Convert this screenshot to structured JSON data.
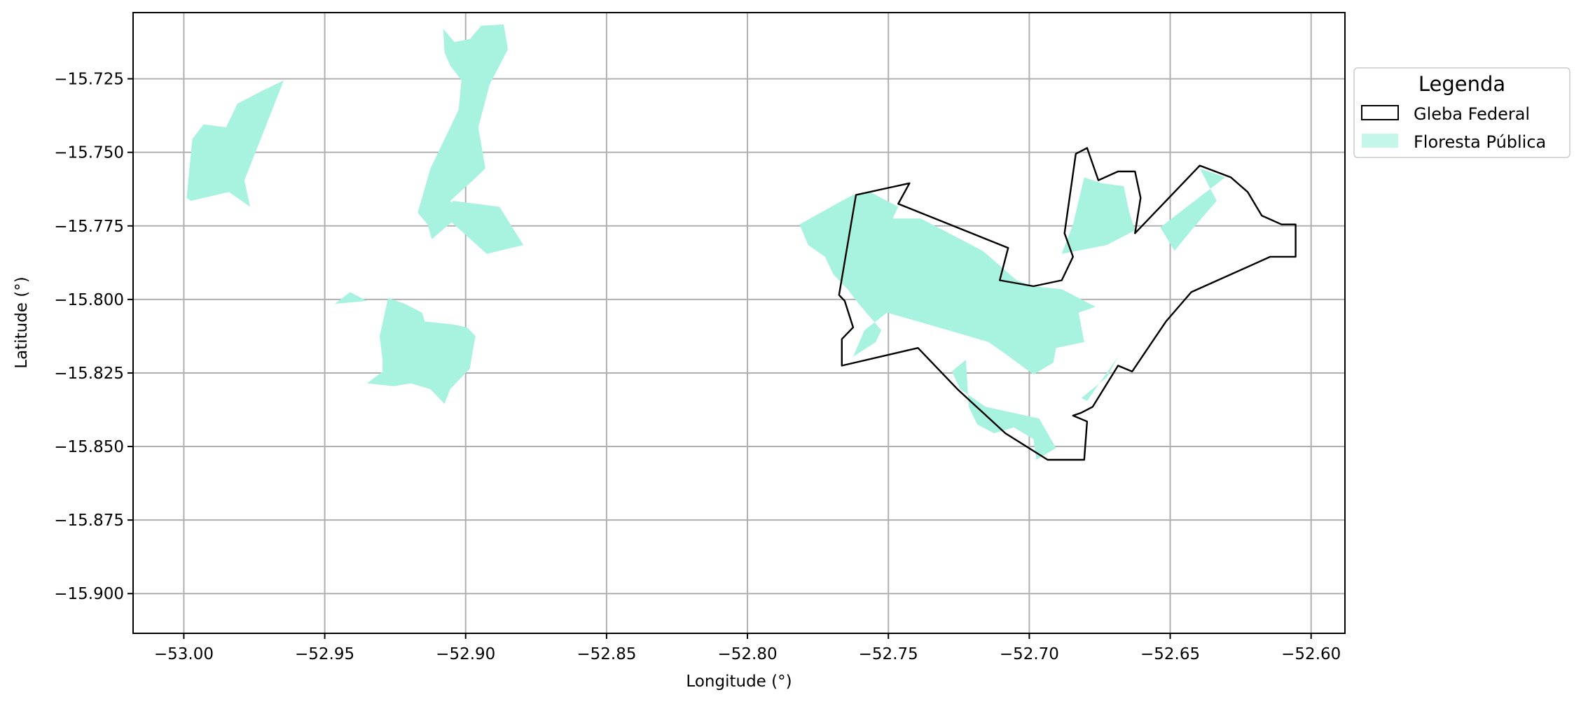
{
  "chart_data": {
    "type": "map",
    "title": "",
    "xlabel": "Longitude (°)",
    "ylabel": "Latitude (°)",
    "xlim": [
      -53.018,
      -52.588
    ],
    "ylim": [
      -15.9135,
      -15.7025
    ],
    "grid": true,
    "x_ticks": [
      {
        "value": -53.0,
        "label": "−53.00"
      },
      {
        "value": -52.95,
        "label": "−52.95"
      },
      {
        "value": -52.9,
        "label": "−52.90"
      },
      {
        "value": -52.85,
        "label": "−52.85"
      },
      {
        "value": -52.8,
        "label": "−52.80"
      },
      {
        "value": -52.75,
        "label": "−52.75"
      },
      {
        "value": -52.7,
        "label": "−52.70"
      },
      {
        "value": -52.65,
        "label": "−52.65"
      },
      {
        "value": -52.6,
        "label": "−52.60"
      }
    ],
    "y_ticks": [
      {
        "value": -15.725,
        "label": "−15.725"
      },
      {
        "value": -15.75,
        "label": "−15.750"
      },
      {
        "value": -15.775,
        "label": "−15.775"
      },
      {
        "value": -15.8,
        "label": "−15.800"
      },
      {
        "value": -15.825,
        "label": "−15.825"
      },
      {
        "value": -15.85,
        "label": "−15.850"
      },
      {
        "value": -15.875,
        "label": "−15.875"
      },
      {
        "value": -15.9,
        "label": "−15.900"
      }
    ],
    "legend": {
      "title": "Legenda",
      "placement": "outside-right-top",
      "entries": [
        {
          "label": "Gleba Federal",
          "style": "outline",
          "color": "#000000"
        },
        {
          "label": "Floresta Pública",
          "style": "fill",
          "color": "#a8f3e0"
        }
      ]
    },
    "forest_color": "#a8f3e0",
    "boundary_color": "#000000",
    "forest_polygons": [
      [
        [
          -52.999,
          -15.7655
        ],
        [
          -52.997,
          -15.7455
        ],
        [
          -52.993,
          -15.7405
        ],
        [
          -52.985,
          -15.7415
        ],
        [
          -52.981,
          -15.7335
        ],
        [
          -52.973,
          -15.7295
        ],
        [
          -52.9645,
          -15.7255
        ],
        [
          -52.9785,
          -15.7595
        ],
        [
          -52.9765,
          -15.7685
        ],
        [
          -52.984,
          -15.7635
        ],
        [
          -52.9975,
          -15.7665
        ]
      ],
      [
        [
          -52.9075,
          -15.716
        ],
        [
          -52.908,
          -15.708
        ],
        [
          -52.904,
          -15.7125
        ],
        [
          -52.8985,
          -15.7115
        ],
        [
          -52.8945,
          -15.707
        ],
        [
          -52.8865,
          -15.7065
        ],
        [
          -52.885,
          -15.715
        ],
        [
          -52.8915,
          -15.727
        ],
        [
          -52.8955,
          -15.7415
        ],
        [
          -52.893,
          -15.7555
        ],
        [
          -52.8985,
          -15.7605
        ],
        [
          -52.9055,
          -15.7665
        ],
        [
          -52.901,
          -15.7705
        ],
        [
          -52.912,
          -15.7795
        ],
        [
          -52.9135,
          -15.7745
        ],
        [
          -52.917,
          -15.7705
        ],
        [
          -52.9125,
          -15.7555
        ],
        [
          -52.908,
          -15.7465
        ],
        [
          -52.9025,
          -15.7355
        ],
        [
          -52.9015,
          -15.7255
        ],
        [
          -52.9055,
          -15.7205
        ]
      ],
      [
        [
          -52.907,
          -15.772
        ],
        [
          -52.8925,
          -15.7845
        ],
        [
          -52.8795,
          -15.7815
        ],
        [
          -52.888,
          -15.7685
        ],
        [
          -52.9045,
          -15.7665
        ]
      ],
      [
        [
          -52.941,
          -15.7975
        ],
        [
          -52.935,
          -15.8005
        ],
        [
          -52.9465,
          -15.8015
        ]
      ],
      [
        [
          -52.9275,
          -15.7995
        ],
        [
          -52.9305,
          -15.8125
        ],
        [
          -52.9295,
          -15.8205
        ],
        [
          -52.9295,
          -15.8245
        ],
        [
          -52.935,
          -15.8285
        ],
        [
          -52.9255,
          -15.8295
        ],
        [
          -52.9195,
          -15.8285
        ],
        [
          -52.9125,
          -15.8305
        ],
        [
          -52.9075,
          -15.8355
        ],
        [
          -52.9055,
          -15.8305
        ],
        [
          -52.8985,
          -15.8235
        ],
        [
          -52.8975,
          -15.8175
        ],
        [
          -52.8965,
          -15.8125
        ],
        [
          -52.8995,
          -15.8095
        ],
        [
          -52.9045,
          -15.8085
        ],
        [
          -52.9145,
          -15.8075
        ],
        [
          -52.9155,
          -15.8045
        ],
        [
          -52.9215,
          -15.8015
        ]
      ],
      [
        [
          -52.7815,
          -15.7745
        ],
        [
          -52.7665,
          -15.7665
        ],
        [
          -52.7625,
          -15.7645
        ],
        [
          -52.7565,
          -15.7635
        ],
        [
          -52.7465,
          -15.7685
        ],
        [
          -52.7485,
          -15.7725
        ],
        [
          -52.7385,
          -15.7725
        ],
        [
          -52.7165,
          -15.7835
        ],
        [
          -52.7045,
          -15.7935
        ],
        [
          -52.6985,
          -15.7955
        ],
        [
          -52.6885,
          -15.7965
        ],
        [
          -52.6765,
          -15.8025
        ],
        [
          -52.6825,
          -15.8045
        ],
        [
          -52.6805,
          -15.8145
        ],
        [
          -52.6905,
          -15.8165
        ],
        [
          -52.6915,
          -15.8215
        ],
        [
          -52.6985,
          -15.8255
        ],
        [
          -52.7085,
          -15.8185
        ],
        [
          -52.7145,
          -15.8145
        ],
        [
          -52.7215,
          -15.8125
        ],
        [
          -52.7395,
          -15.8075
        ],
        [
          -52.7505,
          -15.8045
        ],
        [
          -52.7585,
          -15.8105
        ],
        [
          -52.7625,
          -15.8195
        ],
        [
          -52.7545,
          -15.8145
        ],
        [
          -52.7525,
          -15.8105
        ],
        [
          -52.7605,
          -15.8015
        ],
        [
          -52.7645,
          -15.7965
        ],
        [
          -52.7695,
          -15.7915
        ],
        [
          -52.7725,
          -15.7855
        ],
        [
          -52.7785,
          -15.7815
        ]
      ],
      [
        [
          -52.7225,
          -15.8205
        ],
        [
          -52.7275,
          -15.8245
        ],
        [
          -52.7245,
          -15.8305
        ],
        [
          -52.7155,
          -15.8365
        ],
        [
          -52.6965,
          -15.8405
        ],
        [
          -52.6905,
          -15.8505
        ],
        [
          -52.6975,
          -15.8545
        ],
        [
          -52.6985,
          -15.8475
        ],
        [
          -52.7055,
          -15.8435
        ],
        [
          -52.7125,
          -15.8455
        ],
        [
          -52.7185,
          -15.8425
        ],
        [
          -52.7215,
          -15.8365
        ]
      ],
      [
        [
          -52.6805,
          -15.7585
        ],
        [
          -52.6845,
          -15.7745
        ],
        [
          -52.6885,
          -15.7845
        ],
        [
          -52.6725,
          -15.7815
        ],
        [
          -52.6625,
          -15.7765
        ],
        [
          -52.6645,
          -15.7705
        ],
        [
          -52.6665,
          -15.7615
        ],
        [
          -52.6745,
          -15.7605
        ]
      ],
      [
        [
          -52.6685,
          -15.8195
        ],
        [
          -52.6795,
          -15.8345
        ],
        [
          -52.6815,
          -15.8335
        ],
        [
          -52.6725,
          -15.8265
        ]
      ],
      [
        [
          -52.6395,
          -15.7555
        ],
        [
          -52.6305,
          -15.7585
        ],
        [
          -52.6535,
          -15.7755
        ],
        [
          -52.6485,
          -15.7835
        ],
        [
          -52.6425,
          -15.7765
        ],
        [
          -52.6335,
          -15.7665
        ]
      ]
    ],
    "boundary_polygon": [
      [
        -52.7675,
        -15.7985
      ],
      [
        -52.7615,
        -15.7645
      ],
      [
        -52.7425,
        -15.7605
      ],
      [
        -52.7465,
        -15.7675
      ],
      [
        -52.7075,
        -15.7825
      ],
      [
        -52.7105,
        -15.7935
      ],
      [
        -52.6985,
        -15.7955
      ],
      [
        -52.6885,
        -15.7935
      ],
      [
        -52.6845,
        -15.7855
      ],
      [
        -52.6875,
        -15.7775
      ],
      [
        -52.6835,
        -15.7505
      ],
      [
        -52.6795,
        -15.7485
      ],
      [
        -52.6755,
        -15.7595
      ],
      [
        -52.6685,
        -15.7565
      ],
      [
        -52.6625,
        -15.7565
      ],
      [
        -52.6605,
        -15.7655
      ],
      [
        -52.6625,
        -15.7775
      ],
      [
        -52.6575,
        -15.7725
      ],
      [
        -52.6395,
        -15.7545
      ],
      [
        -52.6285,
        -15.7585
      ],
      [
        -52.6225,
        -15.7635
      ],
      [
        -52.6175,
        -15.7715
      ],
      [
        -52.6105,
        -15.7745
      ],
      [
        -52.6055,
        -15.7745
      ],
      [
        -52.6055,
        -15.7855
      ],
      [
        -52.6145,
        -15.7855
      ],
      [
        -52.6425,
        -15.7975
      ],
      [
        -52.6515,
        -15.8075
      ],
      [
        -52.6635,
        -15.8245
      ],
      [
        -52.6685,
        -15.8225
      ],
      [
        -52.6775,
        -15.8365
      ],
      [
        -52.6815,
        -15.8385
      ],
      [
        -52.6845,
        -15.8395
      ],
      [
        -52.6795,
        -15.8415
      ],
      [
        -52.6805,
        -15.8545
      ],
      [
        -52.6935,
        -15.8545
      ],
      [
        -52.7085,
        -15.8455
      ],
      [
        -52.7255,
        -15.8305
      ],
      [
        -52.7395,
        -15.8165
      ],
      [
        -52.7665,
        -15.8225
      ],
      [
        -52.7665,
        -15.8135
      ],
      [
        -52.7625,
        -15.8095
      ],
      [
        -52.7655,
        -15.8005
      ]
    ]
  }
}
